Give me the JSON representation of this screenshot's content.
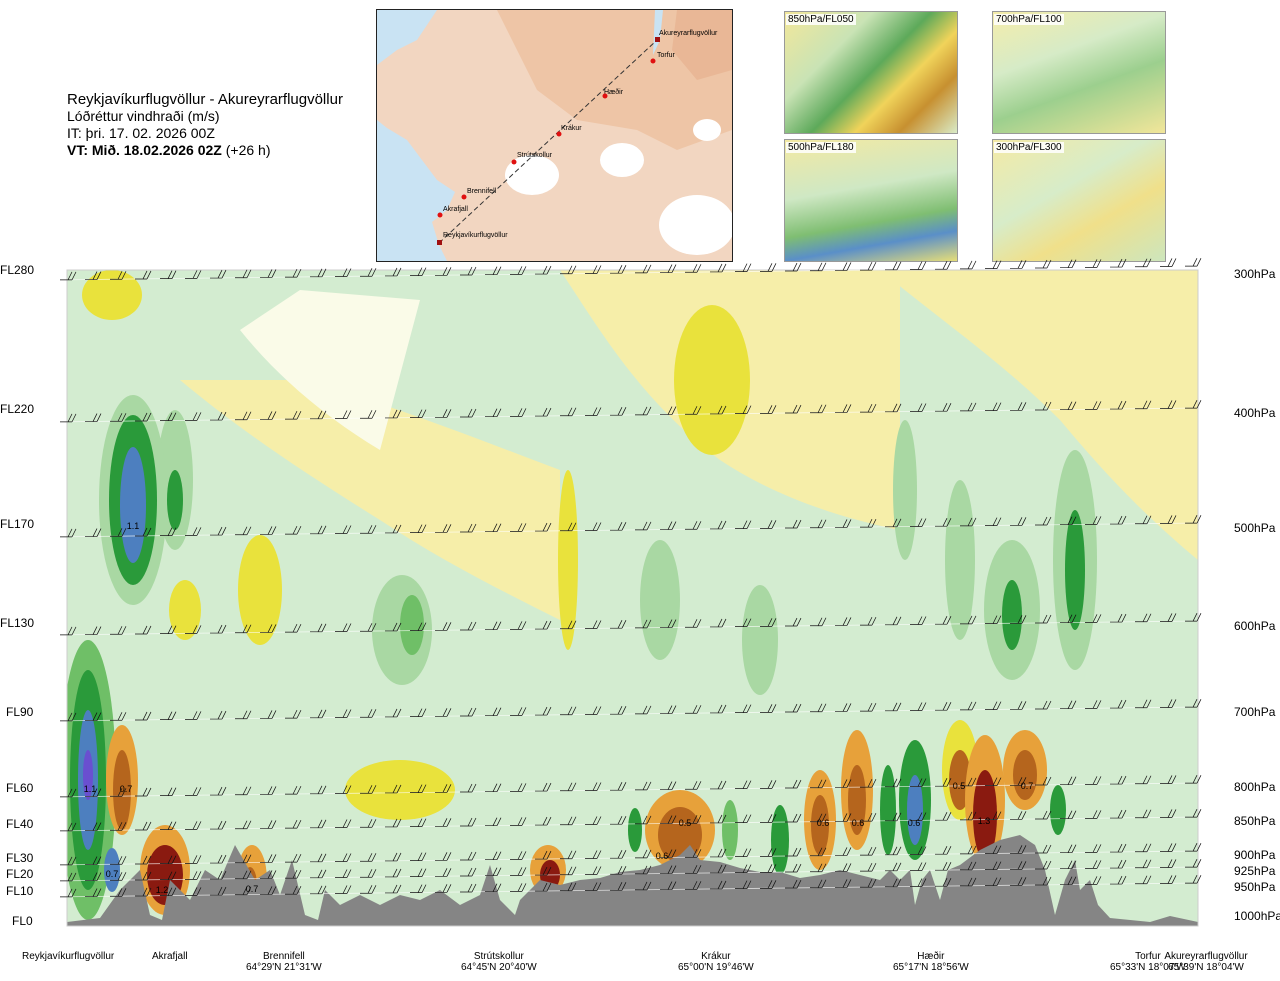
{
  "header": {
    "route": "Reykjavíkurflugvöllur - Akureyrarflugvöllur",
    "quantity": "Lóðréttur vindhraði (m/s)",
    "issue_time": "IT: þri. 17. 02. 2026 00Z",
    "valid_time_prefix": "VT: Mið. 18.02.2026 02Z",
    "valid_time_suffix": "(+26 h)"
  },
  "map_inset": {
    "waypoints": [
      "Akureyrarflugvöllur",
      "Torfur",
      "Hæðir",
      "Krákur",
      "Strútskollur",
      "Brennifell",
      "Akrafjall",
      "Reykjavíkurflugvöllur"
    ]
  },
  "mini_panels": [
    {
      "label": "850hPa/FL050"
    },
    {
      "label": "700hPa/FL100"
    },
    {
      "label": "500hPa/FL180"
    },
    {
      "label": "300hPa/FL300"
    }
  ],
  "chart_data": {
    "type": "heatmap",
    "title": "Reykjavíkurflugvöllur - Akureyrarflugvöllur",
    "quantity_label": "Lóðréttur vindhraði (m/s)",
    "y_axis_left": {
      "labels": [
        "FL280",
        "FL220",
        "FL170",
        "FL130",
        "FL90",
        "FL60",
        "FL40",
        "FL30",
        "FL20",
        "FL10",
        "FL0"
      ]
    },
    "y_axis_right": {
      "labels": [
        "300hPa",
        "400hPa",
        "500hPa",
        "600hPa",
        "700hPa",
        "800hPa",
        "850hPa",
        "900hPa",
        "925hPa",
        "950hPa",
        "1000hPa"
      ],
      "wind_barb_levels_hpa": [
        300,
        400,
        500,
        600,
        700,
        800,
        850,
        900,
        925,
        950
      ]
    },
    "x_axis": {
      "locations": [
        {
          "name": "Reykjavíkurflugvöllur",
          "coord": ""
        },
        {
          "name": "Akrafjall",
          "coord": ""
        },
        {
          "name": "Brennifell",
          "coord": "64°29'N 21°31'W"
        },
        {
          "name": "Strútskollur",
          "coord": "64°45'N 20°40'W"
        },
        {
          "name": "Krákur",
          "coord": "65°00'N 19°46'W"
        },
        {
          "name": "Hæðir",
          "coord": "65°17'N 18°56'W"
        },
        {
          "name": "Torfur",
          "coord": "65°33'N 18°07'W"
        },
        {
          "name": "Akureyrarflugvöllur",
          "coord": "65°39'N 18°04'W"
        }
      ]
    },
    "value_labels": [
      "1.1",
      "1.1",
      "0.7",
      "0.7",
      "1.2",
      "0.7",
      "0.5",
      "0.6",
      "0.6",
      "0.6",
      "0.6",
      "0.5",
      "1.3",
      "0.7"
    ],
    "colors": {
      "strong_down": "#8a1a10",
      "down_2": "#b5651d",
      "down_1": "#e7a13a",
      "weak_down": "#e9e23c",
      "slight_down": "#f6eea9",
      "neutral": "#fafbe8",
      "slight_up": "#d3ecd0",
      "weak_up": "#a9d8a3",
      "up_1": "#6fbf67",
      "up_2": "#2a9a3a",
      "strong_up": "#4d7fbf",
      "very_strong_up": "#6a4fd0",
      "terrain": "#858585"
    },
    "grid": false
  }
}
